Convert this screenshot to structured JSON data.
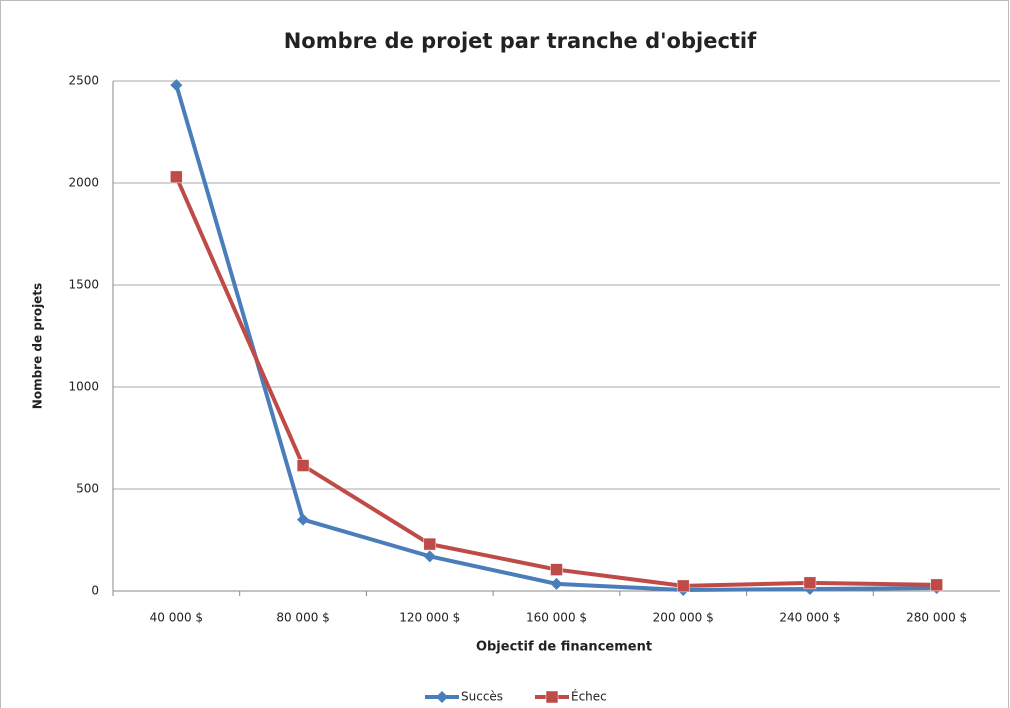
{
  "chart_data": {
    "type": "line",
    "title": "Nombre de projet par tranche d'objectif",
    "x_label": "Objectif de financement",
    "y_label": "Nombre de projets",
    "categories": [
      "40 000 $",
      "80 000 $",
      "120 000 $",
      "160 000 $",
      "200 000 $",
      "240 000 $",
      "280 000 $"
    ],
    "series": [
      {
        "name": "Succès",
        "color": "#4a7ebb",
        "marker": "diamond",
        "values": [
          2480,
          350,
          170,
          35,
          5,
          10,
          15
        ]
      },
      {
        "name": "Échec",
        "color": "#be4b48",
        "marker": "square",
        "values": [
          2030,
          615,
          230,
          105,
          25,
          40,
          30
        ]
      }
    ],
    "ylim": [
      0,
      2500
    ],
    "yticks": [
      0,
      500,
      1000,
      1500,
      2000,
      2500
    ],
    "grid": true,
    "legend": "bottom"
  }
}
